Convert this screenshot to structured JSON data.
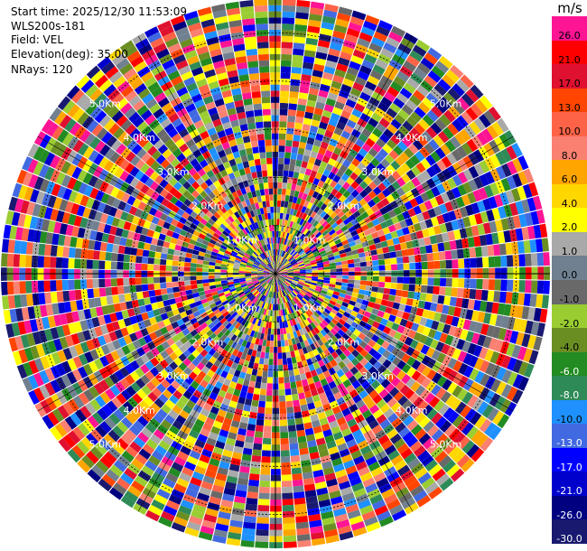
{
  "info": {
    "start_time": "Start time: 2025/12/30 11:53:09",
    "instrument": "WLS200s-181",
    "field": "Field: VEL",
    "elevation": "Elevation(deg): 35.00",
    "nrays": "NRays: 120"
  },
  "colorbar": {
    "unit": "m/s",
    "levels": [
      {
        "label": "26.0",
        "color": "#ff1493"
      },
      {
        "label": "21.0",
        "color": "#ff0000"
      },
      {
        "label": "17.0",
        "color": "#e01030"
      },
      {
        "label": "13.0",
        "color": "#ff4500"
      },
      {
        "label": "10.0",
        "color": "#ff6347"
      },
      {
        "label": "8.0",
        "color": "#fa8072"
      },
      {
        "label": "6.0",
        "color": "#ffa500"
      },
      {
        "label": "4.0",
        "color": "#ffd700"
      },
      {
        "label": "2.0",
        "color": "#ffff00"
      },
      {
        "label": "1.0",
        "color": "#a9a9a9"
      },
      {
        "label": "0.0",
        "color": "#708090"
      },
      {
        "label": "-1.0",
        "color": "#696969"
      },
      {
        "label": "-2.0",
        "color": "#9acd32"
      },
      {
        "label": "-4.0",
        "color": "#6b8e23"
      },
      {
        "label": "-6.0",
        "color": "#228b22"
      },
      {
        "label": "-8.0",
        "color": "#2e8b57"
      },
      {
        "label": "-10.0",
        "color": "#1e90ff"
      },
      {
        "label": "-13.0",
        "color": "#4169e1"
      },
      {
        "label": "-17.0",
        "color": "#0000ff"
      },
      {
        "label": "-21.0",
        "color": "#0000cd"
      },
      {
        "label": "-26.0",
        "color": "#000080"
      },
      {
        "label": "-30.0",
        "color": "#191970"
      }
    ]
  },
  "chart_data": {
    "type": "heatmap",
    "projection": "polar PPI",
    "field": "VEL",
    "units": "m/s",
    "nrays": 120,
    "azimuth_step_deg": 3,
    "gate_count": 45,
    "value_range": [
      -30,
      26
    ],
    "range_rings_km": [
      1.0,
      2.0,
      3.0,
      4.0,
      5.0
    ],
    "range_ring_labels": [
      "1.0Km",
      "2.0Km",
      "3.0Km",
      "4.0Km",
      "5.0Km"
    ],
    "spoke_angles_deg": [
      0,
      30,
      60,
      90,
      120,
      150,
      180,
      210,
      240,
      270,
      300,
      330
    ],
    "max_range_km": 5.7,
    "grid": true
  }
}
